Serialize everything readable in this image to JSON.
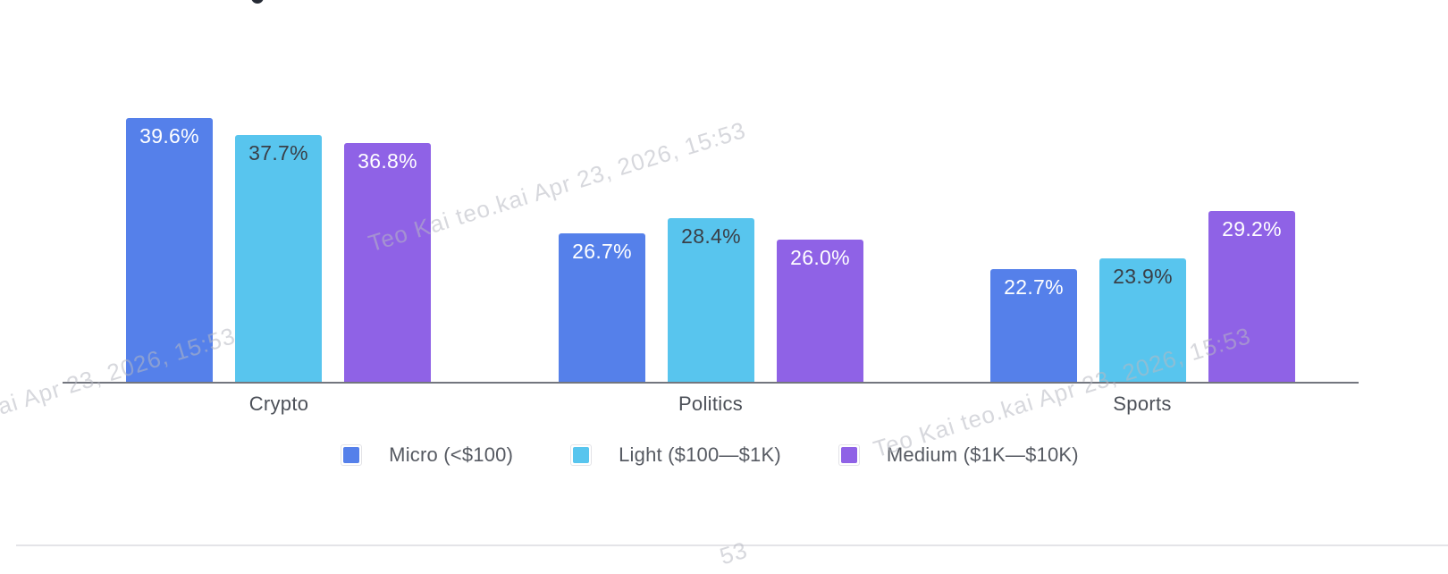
{
  "chart_data": {
    "type": "bar",
    "title": "",
    "xlabel": "",
    "ylabel": "",
    "categories": [
      "Crypto",
      "Politics",
      "Sports"
    ],
    "series": [
      {
        "name": "Micro (<$100)",
        "color": "#5580EA",
        "label_color": "#FFFFFF",
        "values": [
          39.6,
          26.7,
          22.7
        ]
      },
      {
        "name": "Light ($100—$1K)",
        "color": "#58C5EE",
        "label_color": "#3A3F47",
        "values": [
          37.7,
          28.4,
          23.9
        ]
      },
      {
        "name": "Medium ($1K—$10K)",
        "color": "#8F62E6",
        "label_color": "#FFFFFF",
        "values": [
          36.8,
          26.0,
          29.2
        ]
      }
    ],
    "value_suffix": "%",
    "value_decimals": 1,
    "bar_labels": "inside-top",
    "ylim": [
      10,
      45
    ],
    "grid": false,
    "legend_position": "bottom",
    "axis_line_color": "#73767E",
    "category_label_color": "#4C5058",
    "legend_text_color": "#565A62"
  },
  "watermark": {
    "text": "Teo Kai teo.kai Apr 23, 2026, 15:53",
    "fragment": "53",
    "color": "#B7B9C2"
  }
}
